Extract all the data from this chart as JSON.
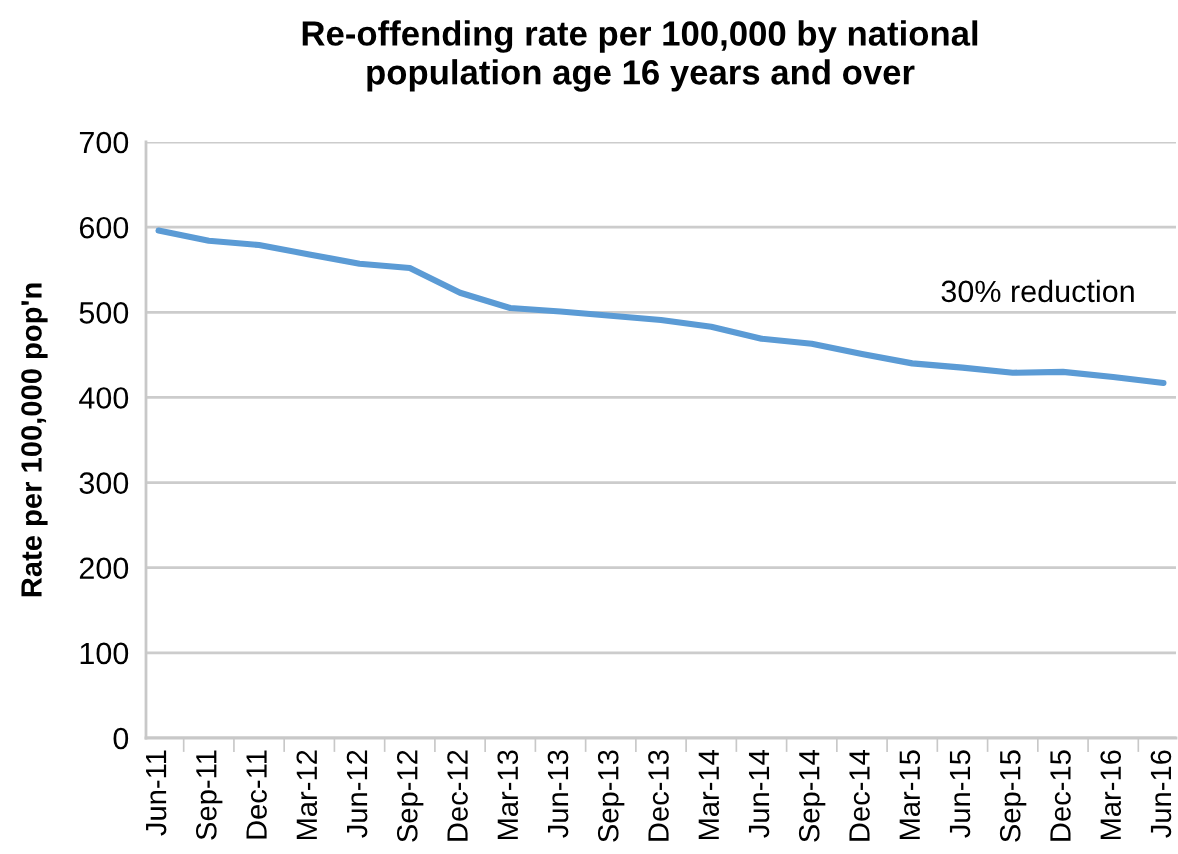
{
  "chart_data": {
    "type": "line",
    "title": "Re-offending rate per 100,000 by national\npopulation age 16 years and over",
    "ylabel": "Rate per 100,000 pop'n",
    "categories": [
      "Jun-11",
      "Sep-11",
      "Dec-11",
      "Mar-12",
      "Jun-12",
      "Sep-12",
      "Dec-12",
      "Mar-13",
      "Jun-13",
      "Sep-13",
      "Dec-13",
      "Mar-14",
      "Jun-14",
      "Sep-14",
      "Dec-14",
      "Mar-15",
      "Jun-15",
      "Sep-15",
      "Dec-15",
      "Mar-16",
      "Jun-16"
    ],
    "series": [
      {
        "color": "#5b9bd5",
        "values": [
          596,
          584,
          579,
          568,
          557,
          552,
          523,
          505,
          501,
          496,
          491,
          483,
          469,
          463,
          451,
          440,
          435,
          429,
          430,
          424,
          417
        ]
      }
    ],
    "annotations": [
      "30% reduction"
    ],
    "ylim": [
      0,
      700
    ],
    "yticks": [
      0,
      100,
      200,
      300,
      400,
      500,
      600,
      700
    ],
    "grid": "y",
    "marker": "none",
    "line_style": "solid"
  }
}
